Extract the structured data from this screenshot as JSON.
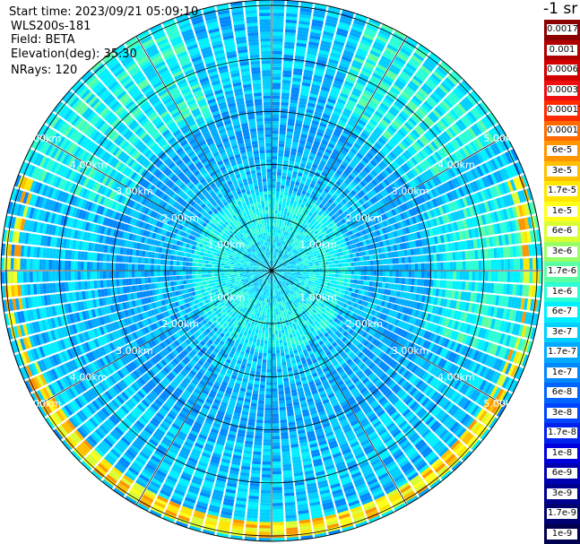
{
  "header": {
    "start_time": "Start time: 2023/09/21 05:09:10",
    "instrument": "WLS200s-181",
    "field": "Field: BETA",
    "elevation": "Elevation(deg): 35.30",
    "nrays": "NRays: 120"
  },
  "ppi": {
    "rays": 120,
    "ring_labels": [
      "1.00km",
      "2.00km",
      "3.00km",
      "4.00km",
      "5.00km",
      "6.00km"
    ],
    "ring_km": [
      1,
      2,
      3,
      4,
      5,
      6
    ],
    "max_range_km": 5.1
  },
  "colorbar": {
    "unit": "-1 sr",
    "levels": [
      {
        "label": "0.0017",
        "color": "#8b0000"
      },
      {
        "label": "0.001",
        "color": "#b00000"
      },
      {
        "label": "0.0006",
        "color": "#d40000"
      },
      {
        "label": "0.0003",
        "color": "#ee1010"
      },
      {
        "label": "0.00017",
        "color": "#ff2a00"
      },
      {
        "label": "0.0001",
        "color": "#ff6a00"
      },
      {
        "label": "6e-5",
        "color": "#ff9500"
      },
      {
        "label": "3e-5",
        "color": "#ffbf00"
      },
      {
        "label": "1.7e-5",
        "color": "#ffe600"
      },
      {
        "label": "1e-5",
        "color": "#ffff1a"
      },
      {
        "label": "6e-6",
        "color": "#d9ff33"
      },
      {
        "label": "3e-6",
        "color": "#99ff66"
      },
      {
        "label": "1.7e-6",
        "color": "#5cffa3"
      },
      {
        "label": "1e-6",
        "color": "#2affd5"
      },
      {
        "label": "6e-7",
        "color": "#00f0ff"
      },
      {
        "label": "3e-7",
        "color": "#00d0ff"
      },
      {
        "label": "1.7e-7",
        "color": "#00aaff"
      },
      {
        "label": "1e-7",
        "color": "#0088ff"
      },
      {
        "label": "6e-8",
        "color": "#0066ff"
      },
      {
        "label": "3e-8",
        "color": "#0044ff"
      },
      {
        "label": "1.7e-8",
        "color": "#0022ee"
      },
      {
        "label": "1e-8",
        "color": "#0000dd"
      },
      {
        "label": "6e-9",
        "color": "#0000b0"
      },
      {
        "label": "3e-9",
        "color": "#000090"
      },
      {
        "label": "1.7e-9",
        "color": "#000070"
      },
      {
        "label": "1e-9",
        "color": "#000050"
      }
    ]
  }
}
